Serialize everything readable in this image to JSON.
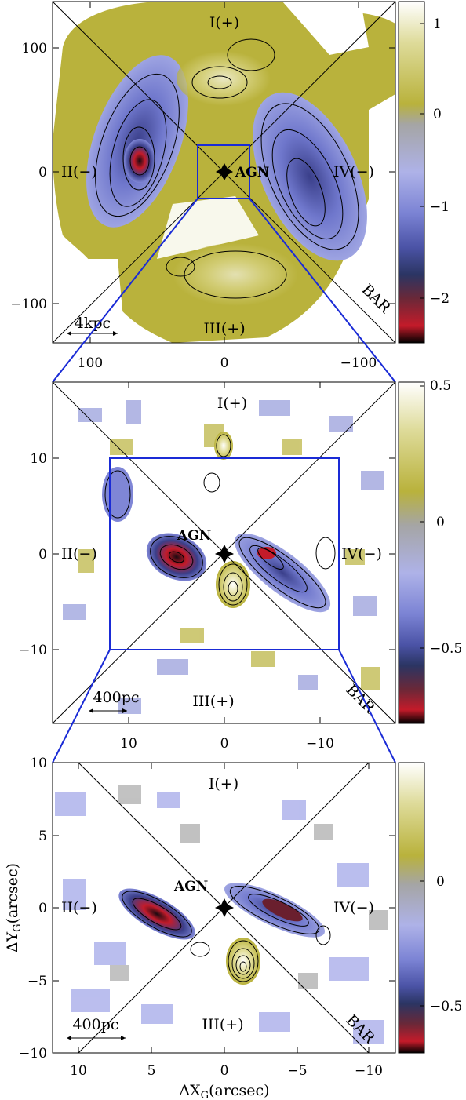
{
  "colors": {
    "map_positive": "#b9b23c",
    "map_negative": "#7f86d6",
    "map_strong_negative": "#b3202c",
    "zoom_lines": "#1a2bd6",
    "frame": "#000000",
    "colorbar_stops": [
      "#000000",
      "#c0182a",
      "#2b3a6a",
      "#6a72c8",
      "#9da3e0",
      "#aaaaaa",
      "#b9b23c",
      "#d8d68a",
      "#ffffff"
    ]
  },
  "panels": [
    {
      "id": "large",
      "quadrants": {
        "top": "I(+)",
        "left": "II(−)",
        "bottom": "III(+)",
        "right": "IV(−)"
      },
      "agn_label": "AGN",
      "bar_label": "BAR",
      "scale_bar_label": "4kpc",
      "y_ticks": [
        "100",
        "0",
        "−100"
      ],
      "x_ticks": [
        "100",
        "0",
        "−100"
      ],
      "colorbar_ticks": [
        "1",
        "0",
        "−1",
        "−2"
      ]
    },
    {
      "id": "medium",
      "quadrants": {
        "top": "I(+)",
        "left": "II(−)",
        "bottom": "III(+)",
        "right": "IV(−)"
      },
      "agn_label": "AGN",
      "bar_label": "BAR",
      "scale_bar_label": "400pc",
      "y_ticks": [
        "10",
        "0",
        "−10"
      ],
      "x_ticks": [
        "10",
        "0",
        "−10"
      ],
      "colorbar_ticks": [
        "0.5",
        "0",
        "−0.5"
      ]
    },
    {
      "id": "small",
      "quadrants": {
        "top": "I(+)",
        "left": "II(−)",
        "bottom": "III(+)",
        "right": "IV(−)"
      },
      "agn_label": "AGN",
      "bar_label": "BAR",
      "scale_bar_label": "400pc",
      "y_ticks": [
        "10",
        "5",
        "0",
        "−5",
        "−10"
      ],
      "x_ticks": [
        "10",
        "5",
        "0",
        "−5",
        "−10"
      ],
      "colorbar_ticks": [
        "0",
        "−0.5"
      ],
      "xlabel": "ΔX",
      "xlabel_sub": "G",
      "xlabel_unit": "(arcsec)",
      "ylabel": "ΔY",
      "ylabel_sub": "G",
      "ylabel_unit": "(arcsec)"
    }
  ]
}
